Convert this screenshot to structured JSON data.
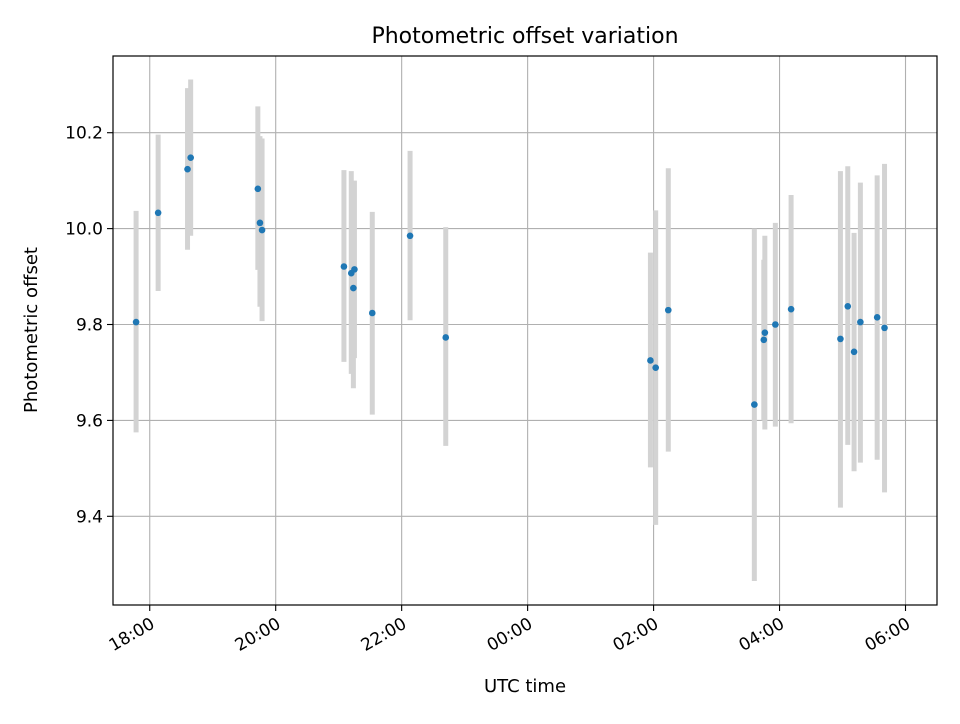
{
  "chart_data": {
    "type": "scatter",
    "title": "Photometric offset variation",
    "xlabel": "UTC time",
    "ylabel": "Photometric offset",
    "x_is_time": true,
    "xlim": [
      "17:25",
      "06:30"
    ],
    "ylim": [
      9.215,
      10.36
    ],
    "xticks": [
      "18:00",
      "20:00",
      "22:00",
      "00:00",
      "02:00",
      "04:00",
      "06:00"
    ],
    "yticks": [
      9.4,
      9.6,
      9.8,
      10.0,
      10.2
    ],
    "ytick_labels": [
      "9.4",
      "9.6",
      "9.8",
      "10.0",
      "10.2"
    ],
    "grid": true,
    "point_color": "#1f77b4",
    "errorbar_color": "#d3d3d3",
    "points": [
      {
        "t": "17:47",
        "y": 9.805,
        "lo": 9.575,
        "hi": 10.037
      },
      {
        "t": "18:08",
        "y": 10.033,
        "lo": 9.87,
        "hi": 10.196
      },
      {
        "t": "18:36",
        "y": 10.124,
        "lo": 9.956,
        "hi": 10.293
      },
      {
        "t": "18:39",
        "y": 10.148,
        "lo": 9.985,
        "hi": 10.311
      },
      {
        "t": "19:43",
        "y": 10.083,
        "lo": 9.914,
        "hi": 10.255
      },
      {
        "t": "19:45",
        "y": 10.012,
        "lo": 9.837,
        "hi": 10.193
      },
      {
        "t": "19:47",
        "y": 9.997,
        "lo": 9.807,
        "hi": 10.188
      },
      {
        "t": "21:05",
        "y": 9.921,
        "lo": 9.722,
        "hi": 10.122
      },
      {
        "t": "21:12",
        "y": 9.907,
        "lo": 9.697,
        "hi": 10.12
      },
      {
        "t": "21:14",
        "y": 9.876,
        "lo": 9.667,
        "hi": 10.083
      },
      {
        "t": "21:15",
        "y": 9.915,
        "lo": 9.73,
        "hi": 10.1
      },
      {
        "t": "21:32",
        "y": 9.824,
        "lo": 9.612,
        "hi": 10.035
      },
      {
        "t": "22:08",
        "y": 9.985,
        "lo": 9.809,
        "hi": 10.162
      },
      {
        "t": "22:42",
        "y": 9.773,
        "lo": 9.547,
        "hi": 10.003
      },
      {
        "t": "01:57",
        "y": 9.725,
        "lo": 9.502,
        "hi": 9.95
      },
      {
        "t": "02:02",
        "y": 9.71,
        "lo": 9.382,
        "hi": 10.038
      },
      {
        "t": "02:14",
        "y": 9.83,
        "lo": 9.535,
        "hi": 10.126
      },
      {
        "t": "03:36",
        "y": 9.633,
        "lo": 9.265,
        "hi": 10.0
      },
      {
        "t": "03:45",
        "y": 9.768,
        "lo": 9.6,
        "hi": 9.935
      },
      {
        "t": "03:46",
        "y": 9.783,
        "lo": 9.581,
        "hi": 9.985
      },
      {
        "t": "03:56",
        "y": 9.8,
        "lo": 9.587,
        "hi": 10.012
      },
      {
        "t": "04:11",
        "y": 9.832,
        "lo": 9.594,
        "hi": 10.07
      },
      {
        "t": "04:58",
        "y": 9.77,
        "lo": 9.418,
        "hi": 10.12
      },
      {
        "t": "05:05",
        "y": 9.838,
        "lo": 9.549,
        "hi": 10.13
      },
      {
        "t": "05:11",
        "y": 9.743,
        "lo": 9.494,
        "hi": 9.991
      },
      {
        "t": "05:17",
        "y": 9.805,
        "lo": 9.512,
        "hi": 10.096
      },
      {
        "t": "05:33",
        "y": 9.815,
        "lo": 9.518,
        "hi": 10.111
      },
      {
        "t": "05:40",
        "y": 9.793,
        "lo": 9.45,
        "hi": 10.135
      }
    ]
  }
}
